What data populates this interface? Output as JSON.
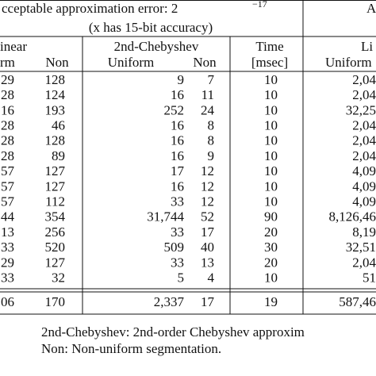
{
  "header": {
    "title_line1": "cceptable approximation error: 2",
    "title_exponent": "−17",
    "title_line2": "(x has 15-bit accuracy)",
    "right_title": "A",
    "group_labels": [
      "inear",
      "2nd-Chebyshev",
      "Time",
      "Li"
    ],
    "sub_labels": [
      "rm",
      "Non",
      "Uniform",
      "Non",
      "[msec]",
      "Uniform"
    ]
  },
  "table": {
    "rows": [
      [
        "29",
        "128",
        "9",
        "7",
        "10",
        "2,04"
      ],
      [
        "28",
        "124",
        "16",
        "11",
        "10",
        "2,04"
      ],
      [
        "16",
        "193",
        "252",
        "24",
        "10",
        "32,25"
      ],
      [
        "28",
        "46",
        "16",
        "8",
        "10",
        "2,04"
      ],
      [
        "28",
        "128",
        "16",
        "8",
        "10",
        "2,04"
      ],
      [
        "28",
        "89",
        "16",
        "9",
        "10",
        "2,04"
      ],
      [
        "57",
        "127",
        "17",
        "12",
        "10",
        "4,09"
      ],
      [
        "57",
        "127",
        "16",
        "12",
        "10",
        "4,09"
      ],
      [
        "57",
        "112",
        "33",
        "12",
        "10",
        "4,09"
      ],
      [
        "44",
        "354",
        "31,744",
        "52",
        "90",
        "8,126,46"
      ],
      [
        "13",
        "256",
        "33",
        "17",
        "20",
        "8,19"
      ],
      [
        "33",
        "520",
        "509",
        "40",
        "30",
        "32,51"
      ],
      [
        "29",
        "127",
        "33",
        "13",
        "20",
        "2,04"
      ],
      [
        "33",
        "32",
        "5",
        "4",
        "10",
        "51"
      ]
    ],
    "total": [
      "06",
      "170",
      "2,337",
      "17",
      "19",
      "587,46"
    ]
  },
  "footnotes": [
    "2nd-Chebyshev: 2nd-order Chebyshev approxim",
    "Non: Non-uniform segmentation."
  ]
}
